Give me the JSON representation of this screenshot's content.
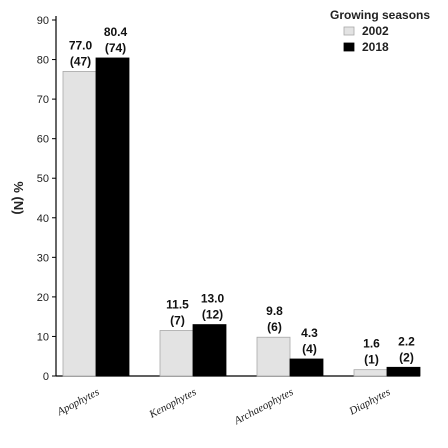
{
  "chart_data": {
    "type": "bar",
    "categories": [
      "Apophytes",
      "Kenophytes",
      "Archaeophytes",
      "Diaphytes"
    ],
    "series": [
      {
        "name": "2002",
        "color": "#e3e3e3",
        "values": [
          77.0,
          11.5,
          9.8,
          1.6
        ],
        "counts": [
          "(47)",
          "(7)",
          "(6)",
          "(1)"
        ],
        "labels": [
          "77.0",
          "11.5",
          "9.8",
          "1.6"
        ]
      },
      {
        "name": "2018",
        "color": "#000000",
        "values": [
          80.4,
          13.0,
          4.3,
          2.2
        ],
        "counts": [
          "(74)",
          "(12)",
          "(4)",
          "(2)"
        ],
        "labels": [
          "80.4",
          "13.0",
          "4.3",
          "2.2"
        ]
      }
    ],
    "ylabel": "% (N)",
    "ylim": [
      0,
      90
    ],
    "yticks": [
      "0",
      "10",
      "20",
      "30",
      "40",
      "50",
      "60",
      "70",
      "80",
      "90"
    ],
    "legend": {
      "title": "Growing seasons",
      "position": "top-right"
    },
    "grid": false
  }
}
